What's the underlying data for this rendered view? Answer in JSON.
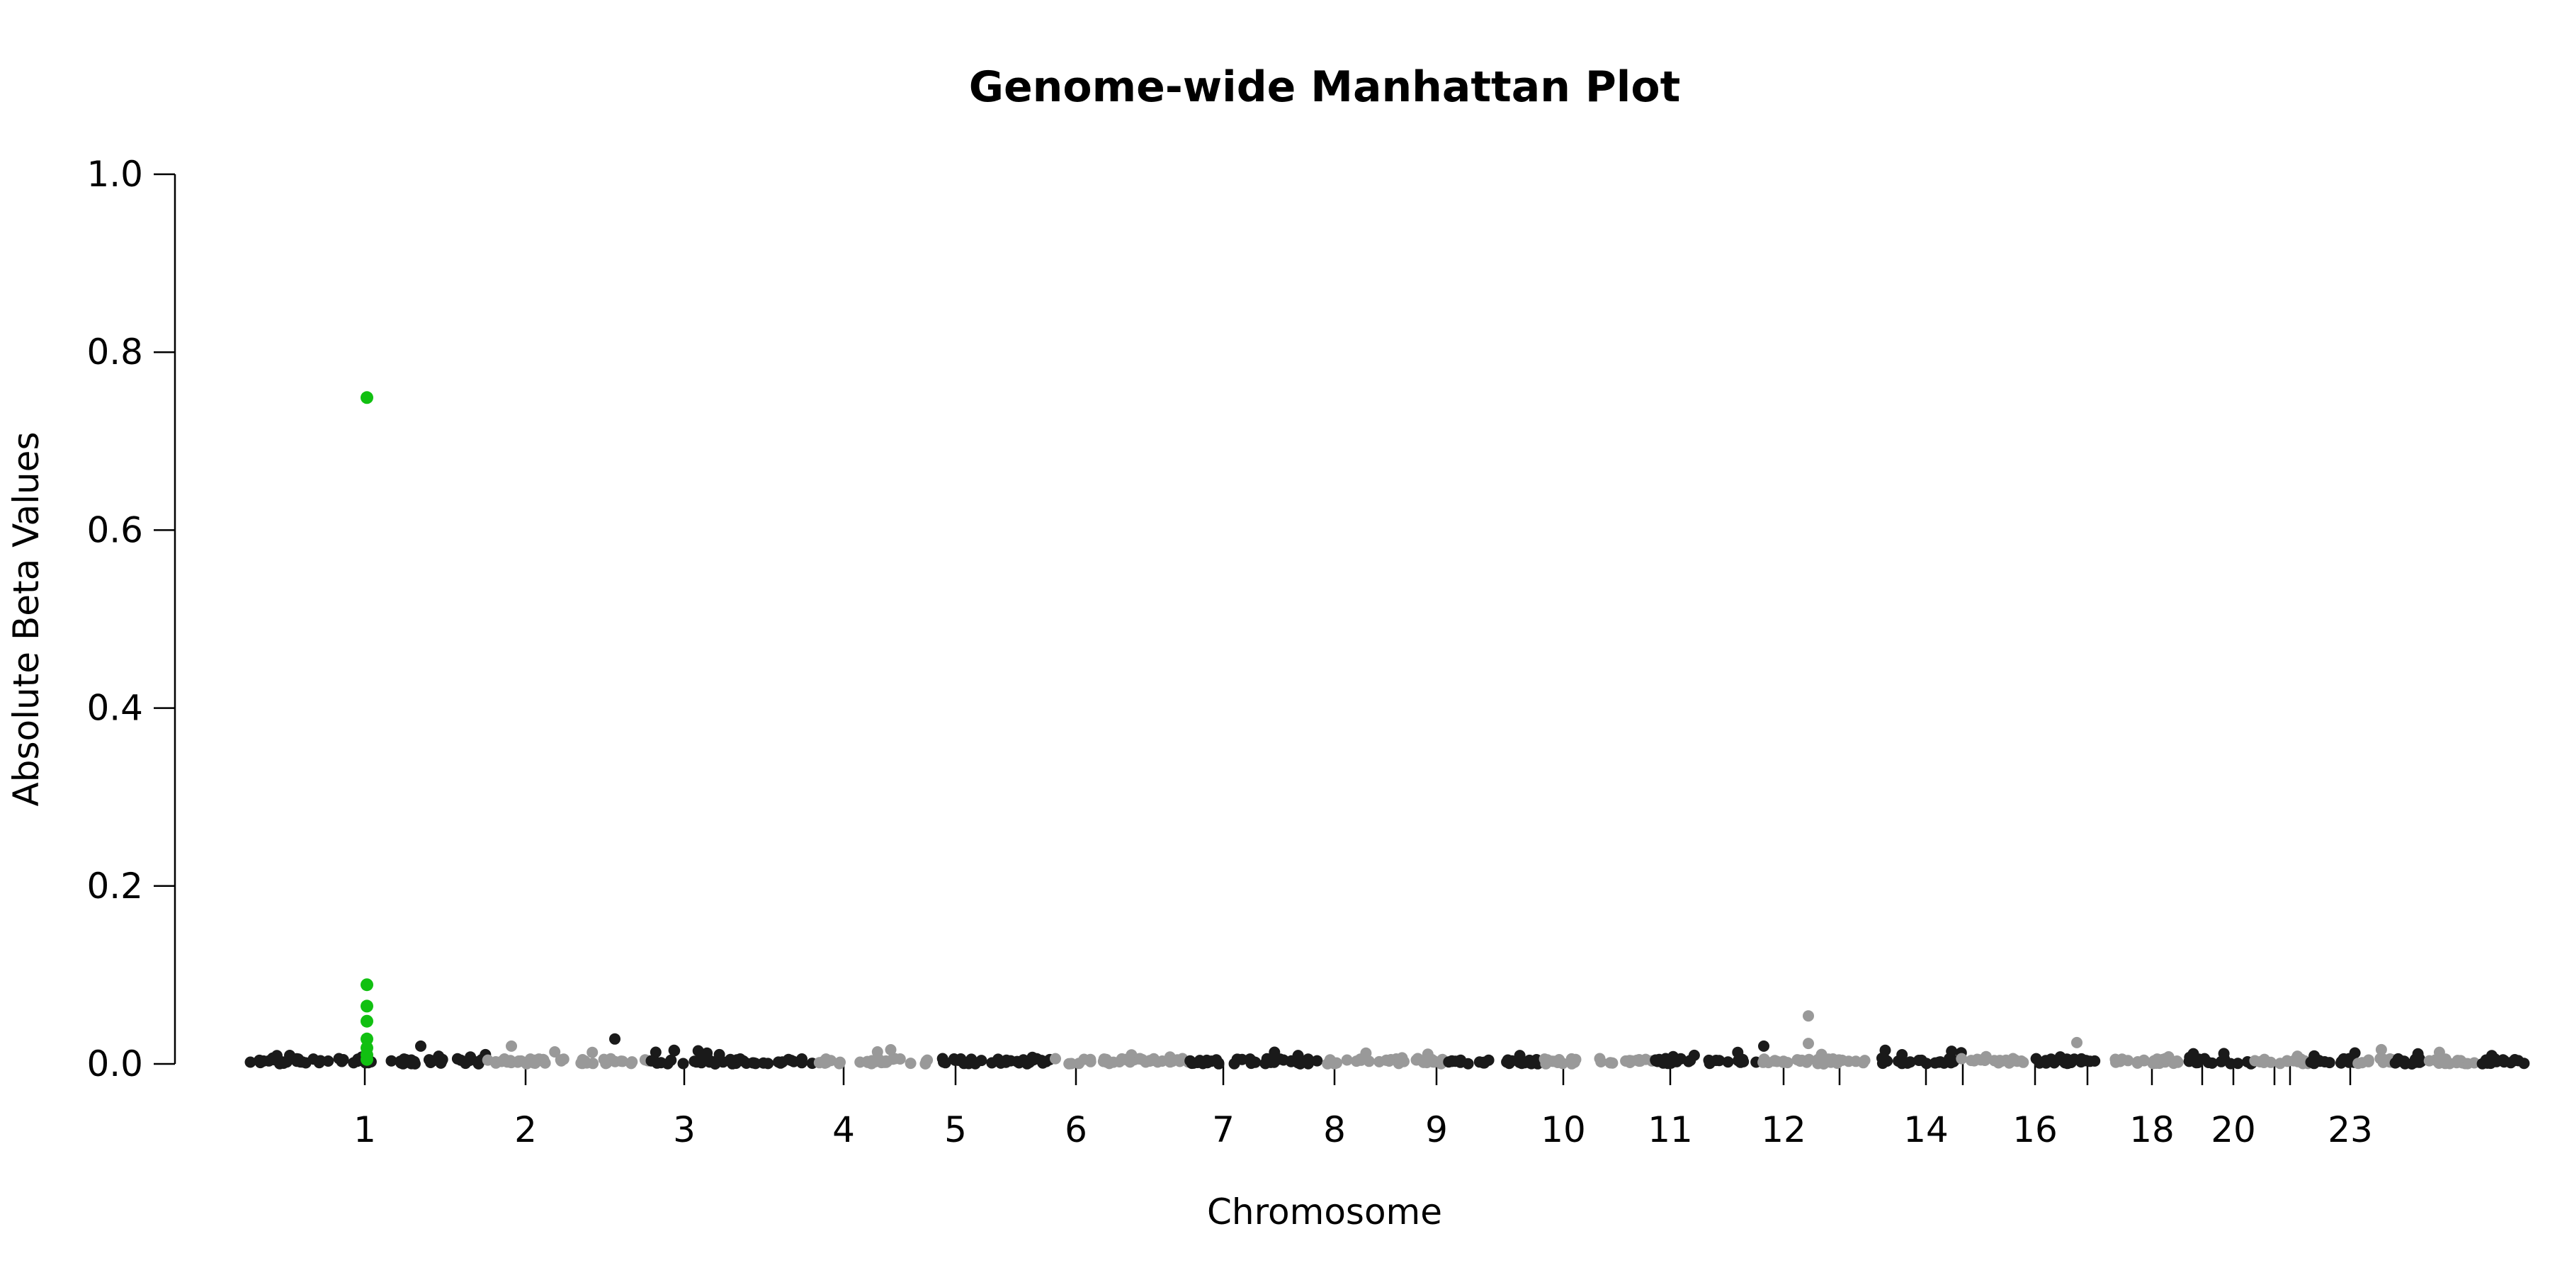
{
  "chart_data": {
    "type": "scatter",
    "title": "Genome-wide Manhattan Plot",
    "xlabel": "Chromosome",
    "ylabel": "Absolute Beta Values",
    "ylim": [
      0,
      1.0
    ],
    "y_ticks": [
      "0.0",
      "0.2",
      "0.4",
      "0.6",
      "0.8",
      "1.0"
    ],
    "x_tick_labels": [
      "1",
      "2",
      "3",
      "4",
      "5",
      "6",
      "7",
      "8",
      "9",
      "10",
      "11",
      "12",
      "14",
      "16",
      "18",
      "20",
      "23"
    ],
    "chromosomes": [
      "1",
      "2",
      "3",
      "4",
      "5",
      "6",
      "7",
      "8",
      "9",
      "10",
      "11",
      "12",
      "13",
      "14",
      "15",
      "16",
      "17",
      "18",
      "19",
      "20",
      "21",
      "22",
      "23"
    ],
    "colors": {
      "odd": "#1a1a1a",
      "even": "#999999",
      "highlight": "#11c011"
    },
    "highlighted_series": {
      "name": "",
      "chromosome": "1",
      "y": [
        0.749,
        0.089,
        0.065,
        0.048,
        0.028,
        0.018,
        0.01,
        0.005
      ]
    },
    "notable_points": [
      {
        "chromosome": "3",
        "y": 0.028
      },
      {
        "chromosome": "12",
        "y": 0.054
      },
      {
        "chromosome": "12",
        "y": 0.023
      },
      {
        "chromosome": "16",
        "y": 0.024
      },
      {
        "chromosome": "11",
        "y": 0.02
      },
      {
        "chromosome": "2",
        "y": 0.02
      },
      {
        "chromosome": "1",
        "y": 0.02
      }
    ],
    "grid": false
  }
}
